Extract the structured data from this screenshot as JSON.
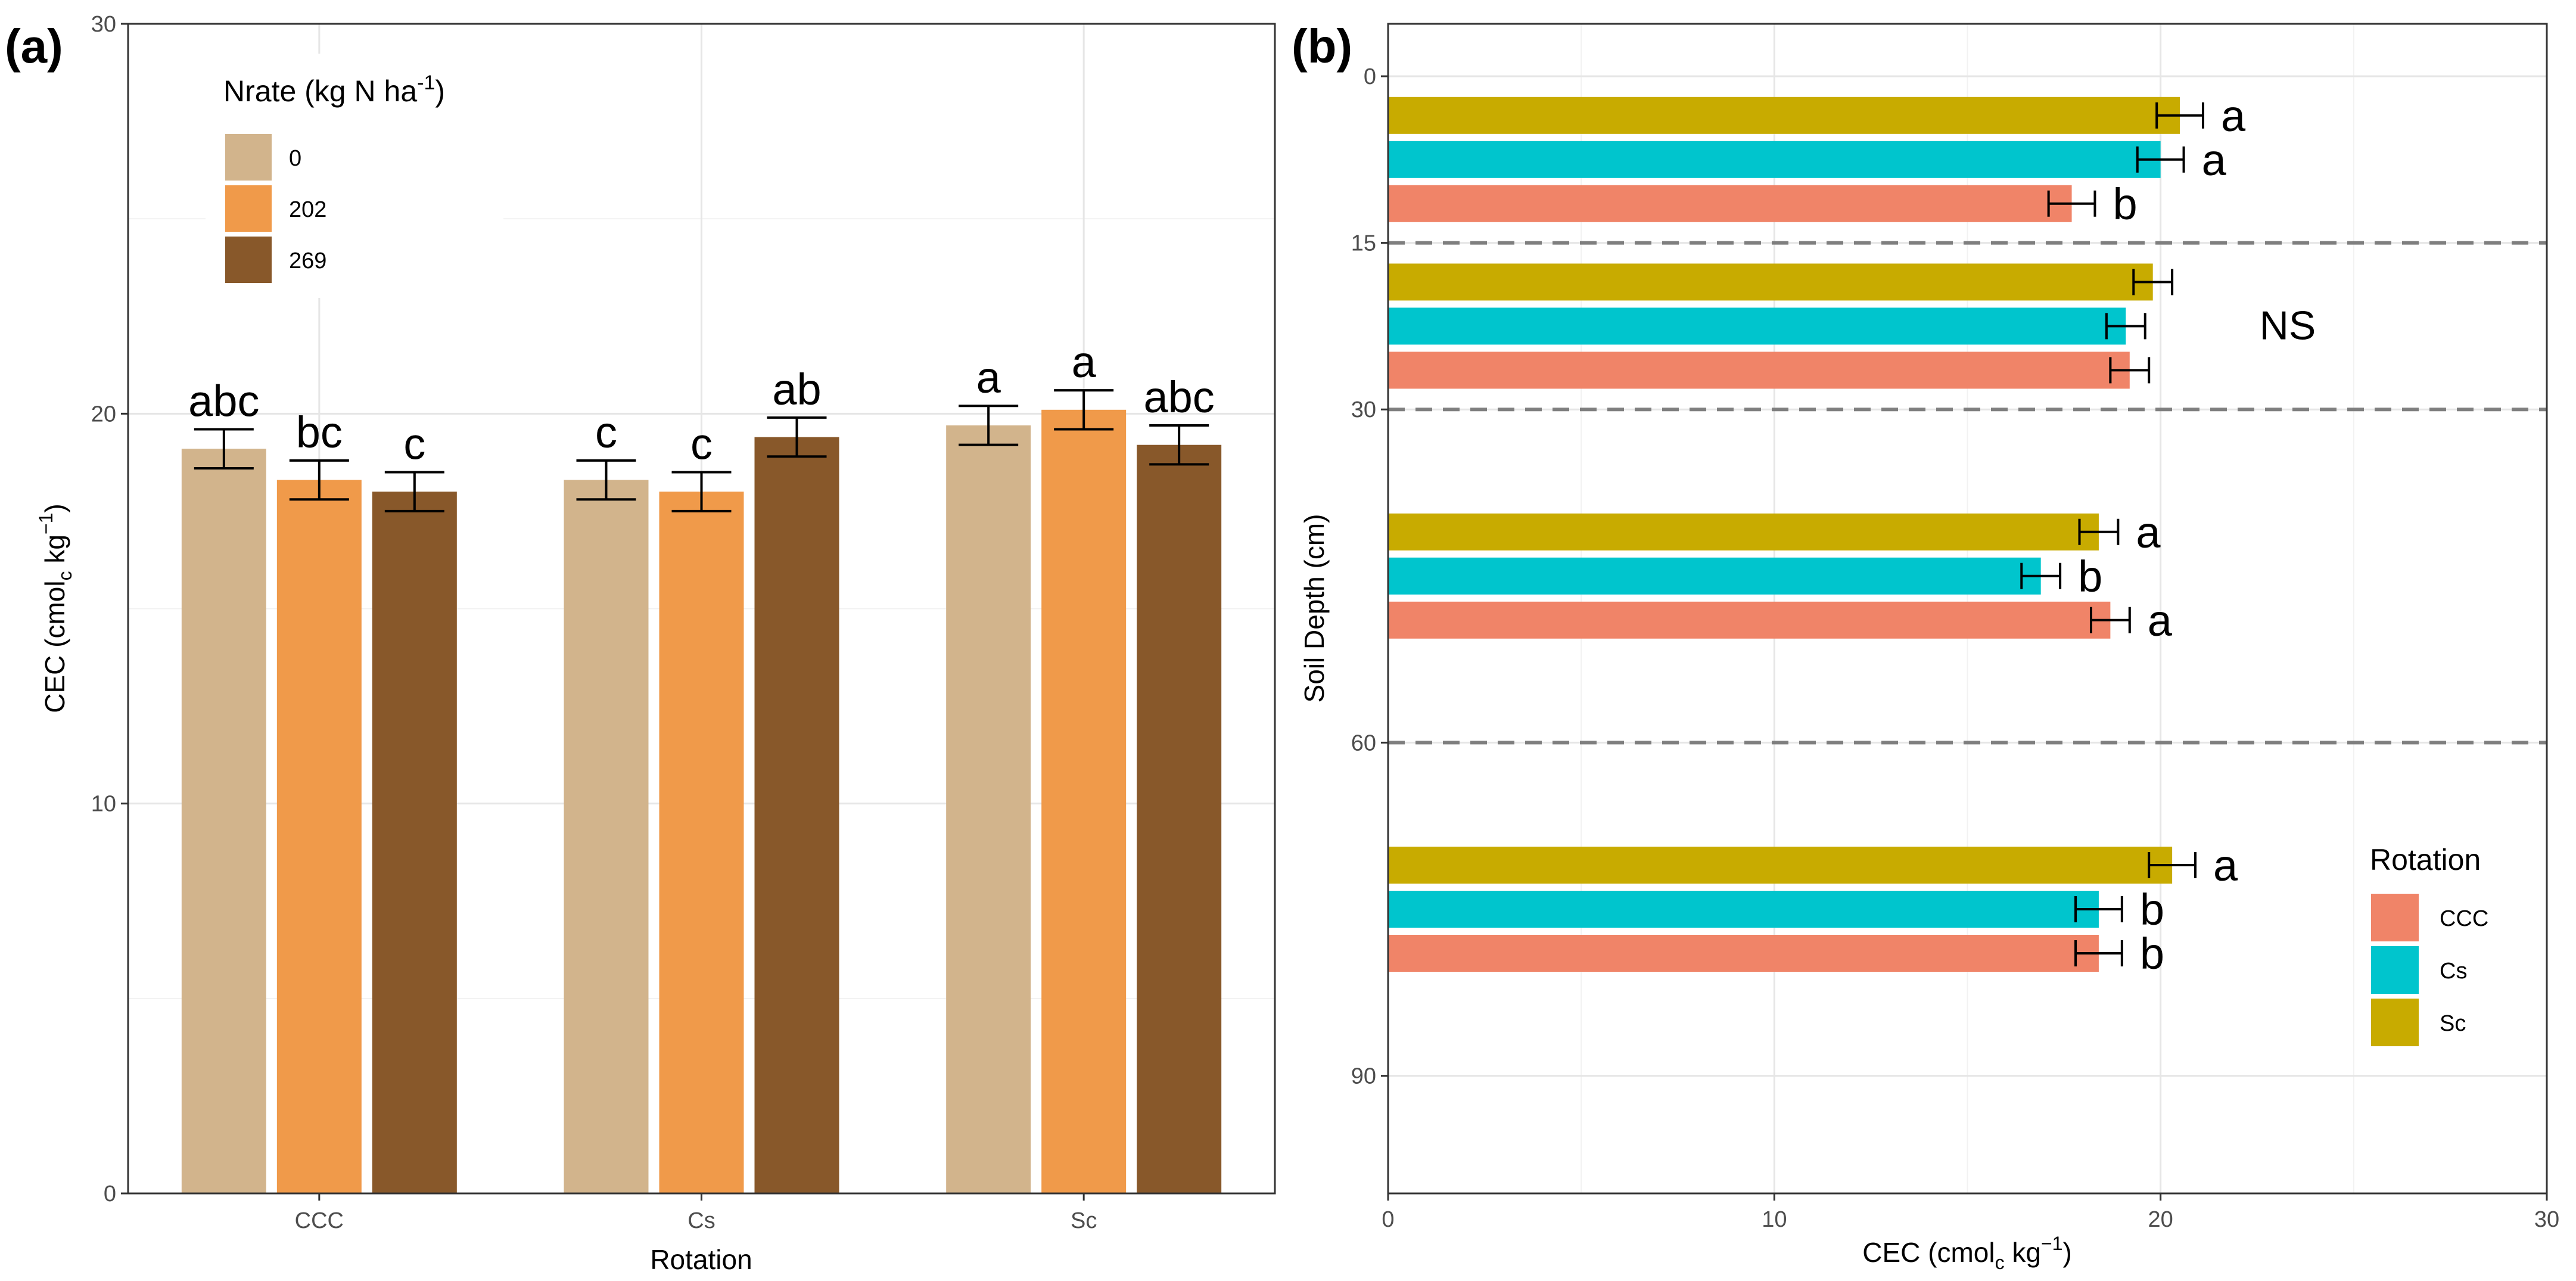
{
  "chart_data": [
    {
      "panel_label": "(a)",
      "type": "bar",
      "orientation": "vertical",
      "xlabel": "Rotation",
      "ylabel": "CEC (cmol",
      "ylabel_sub": "c",
      "ylabel_rest": " kg",
      "ylabel_sup": "−1",
      "ylabel_close": ")",
      "ylim": [
        0,
        30
      ],
      "yticks": [
        0,
        10,
        20,
        30
      ],
      "grid": true,
      "legend": {
        "title": "Nrate (kg N ha",
        "title_sup": "-1",
        "title_close": ")",
        "placement": "top-left",
        "entries": [
          "0",
          "202",
          "269"
        ]
      },
      "categories": [
        "CCC",
        "Cs",
        "Sc"
      ],
      "series": [
        {
          "name": "0",
          "color": "#D2B48C",
          "values": [
            19.1,
            18.3,
            19.7
          ],
          "errors": [
            0.5,
            0.5,
            0.5
          ],
          "letters": [
            "abc",
            "c",
            "a"
          ]
        },
        {
          "name": "202",
          "color": "#F09A4A",
          "values": [
            18.3,
            18.0,
            20.1
          ],
          "errors": [
            0.5,
            0.5,
            0.5
          ],
          "letters": [
            "bc",
            "c",
            "a"
          ]
        },
        {
          "name": "269",
          "color": "#88582A",
          "values": [
            18.0,
            19.4,
            19.2
          ],
          "errors": [
            0.5,
            0.5,
            0.5
          ],
          "letters": [
            "c",
            "ab",
            "abc"
          ]
        }
      ]
    },
    {
      "panel_label": "(b)",
      "type": "bar",
      "orientation": "horizontal",
      "xlabel": "CEC (cmol",
      "xlabel_sub": "c",
      "xlabel_rest": " kg",
      "xlabel_sup": "−1",
      "xlabel_close": ")",
      "ylabel": "Soil Depth (cm)",
      "xlim": [
        0,
        30
      ],
      "xticks": [
        0,
        10,
        20,
        30
      ],
      "ylim": [
        0,
        100
      ],
      "yticks": [
        0,
        15,
        30,
        60,
        90
      ],
      "depth_boundaries": [
        15,
        30,
        60
      ],
      "grid": true,
      "legend": {
        "title": "Rotation",
        "placement": "bottom-right",
        "entries": [
          "CCC",
          "Cs",
          "Sc"
        ]
      },
      "groups": [
        {
          "depth": "0-15",
          "center": 7.5,
          "letters": [
            "a",
            "a",
            "b"
          ],
          "ns_label": ""
        },
        {
          "depth": "15-30",
          "center": 22.5,
          "letters": [
            "",
            "",
            ""
          ],
          "ns_label": "NS"
        },
        {
          "depth": "30-60",
          "center": 45,
          "letters": [
            "a",
            "b",
            "a"
          ],
          "ns_label": ""
        },
        {
          "depth": "60-90",
          "center": 75,
          "letters": [
            "a",
            "b",
            "b"
          ],
          "ns_label": ""
        }
      ],
      "series": [
        {
          "name": "Sc",
          "color": "#C8AB00",
          "values": [
            20.5,
            19.8,
            18.4,
            20.3
          ],
          "errors": [
            0.6,
            0.5,
            0.5,
            0.6
          ]
        },
        {
          "name": "Cs",
          "color": "#00C5CD",
          "values": [
            20.0,
            19.1,
            16.9,
            18.4
          ],
          "errors": [
            0.6,
            0.5,
            0.5,
            0.6
          ]
        },
        {
          "name": "CCC",
          "color": "#F08468",
          "values": [
            17.7,
            19.2,
            18.7,
            18.4
          ],
          "errors": [
            0.6,
            0.5,
            0.5,
            0.6
          ]
        }
      ]
    }
  ]
}
